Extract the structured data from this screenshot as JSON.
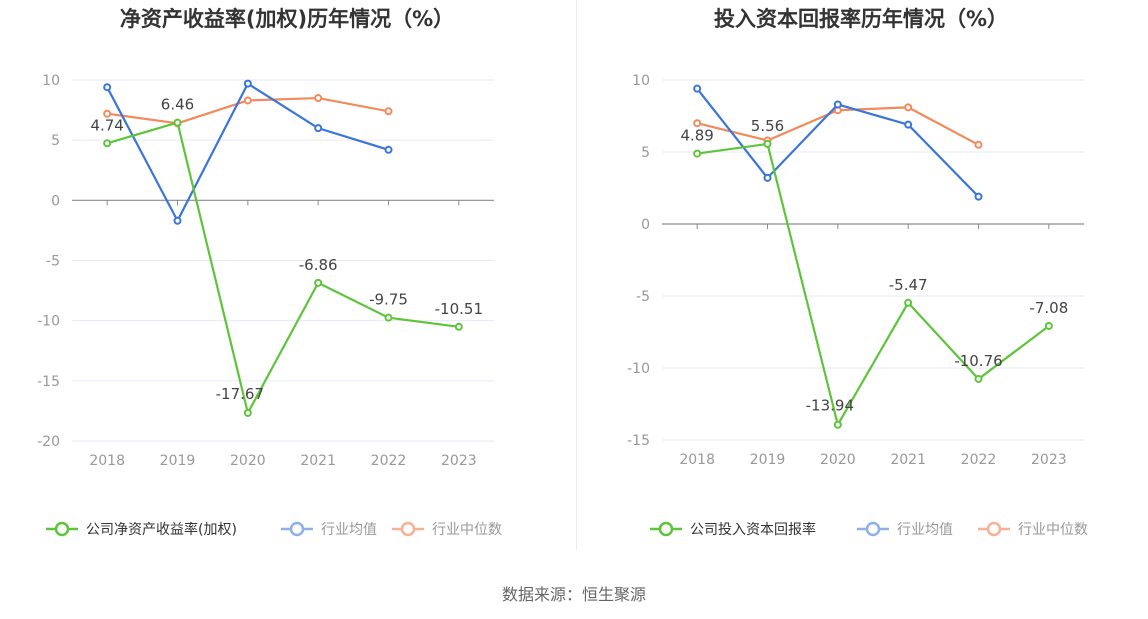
{
  "source_text": "数据来源：恒生聚源",
  "colors": {
    "company": "#5ec43a",
    "avg": "#3a75d9",
    "median": "#f28a5c",
    "legend_avg": "#8fb0ec",
    "legend_median": "#f6b196",
    "grid": "#e6e9f5",
    "axis": "#8c8c8c"
  },
  "chart_data": [
    {
      "type": "line",
      "title": "净资产收益率(加权)历年情况（%）",
      "x": [
        "2018",
        "2019",
        "2020",
        "2021",
        "2022",
        "2023"
      ],
      "ylim": [
        -20,
        10
      ],
      "yticks": [
        10,
        5,
        0,
        -5,
        -10,
        -15,
        -20
      ],
      "grid": true,
      "legend_position": "bottom",
      "series": [
        {
          "name": "公司净资产收益率(加权)",
          "role": "company",
          "values": [
            4.74,
            6.46,
            -17.67,
            -6.86,
            -9.75,
            -10.51
          ],
          "labels": [
            "4.74",
            "6.46",
            "-17.67",
            "-6.86",
            "-9.75",
            "-10.51"
          ]
        },
        {
          "name": "行业均值",
          "role": "avg",
          "values": [
            9.4,
            -1.7,
            9.7,
            6.0,
            4.2,
            null
          ]
        },
        {
          "name": "行业中位数",
          "role": "median",
          "values": [
            7.2,
            6.4,
            8.3,
            8.5,
            7.4,
            null
          ]
        }
      ]
    },
    {
      "type": "line",
      "title": "投入资本回报率历年情况（%）",
      "x": [
        "2018",
        "2019",
        "2020",
        "2021",
        "2022",
        "2023"
      ],
      "ylim": [
        -15,
        10
      ],
      "yticks": [
        10,
        5,
        0,
        -5,
        -10,
        -15
      ],
      "grid": true,
      "legend_position": "bottom",
      "series": [
        {
          "name": "公司投入资本回报率",
          "role": "company",
          "values": [
            4.89,
            5.56,
            -13.94,
            -5.47,
            -10.76,
            -7.08
          ],
          "labels": [
            "4.89",
            "5.56",
            "-13.94",
            "-5.47",
            "-10.76",
            "-7.08"
          ]
        },
        {
          "name": "行业均值",
          "role": "avg",
          "values": [
            9.4,
            3.2,
            8.3,
            6.9,
            1.9,
            null
          ]
        },
        {
          "name": "行业中位数",
          "role": "median",
          "values": [
            7.0,
            5.8,
            7.9,
            8.1,
            5.5,
            null
          ]
        }
      ]
    }
  ]
}
